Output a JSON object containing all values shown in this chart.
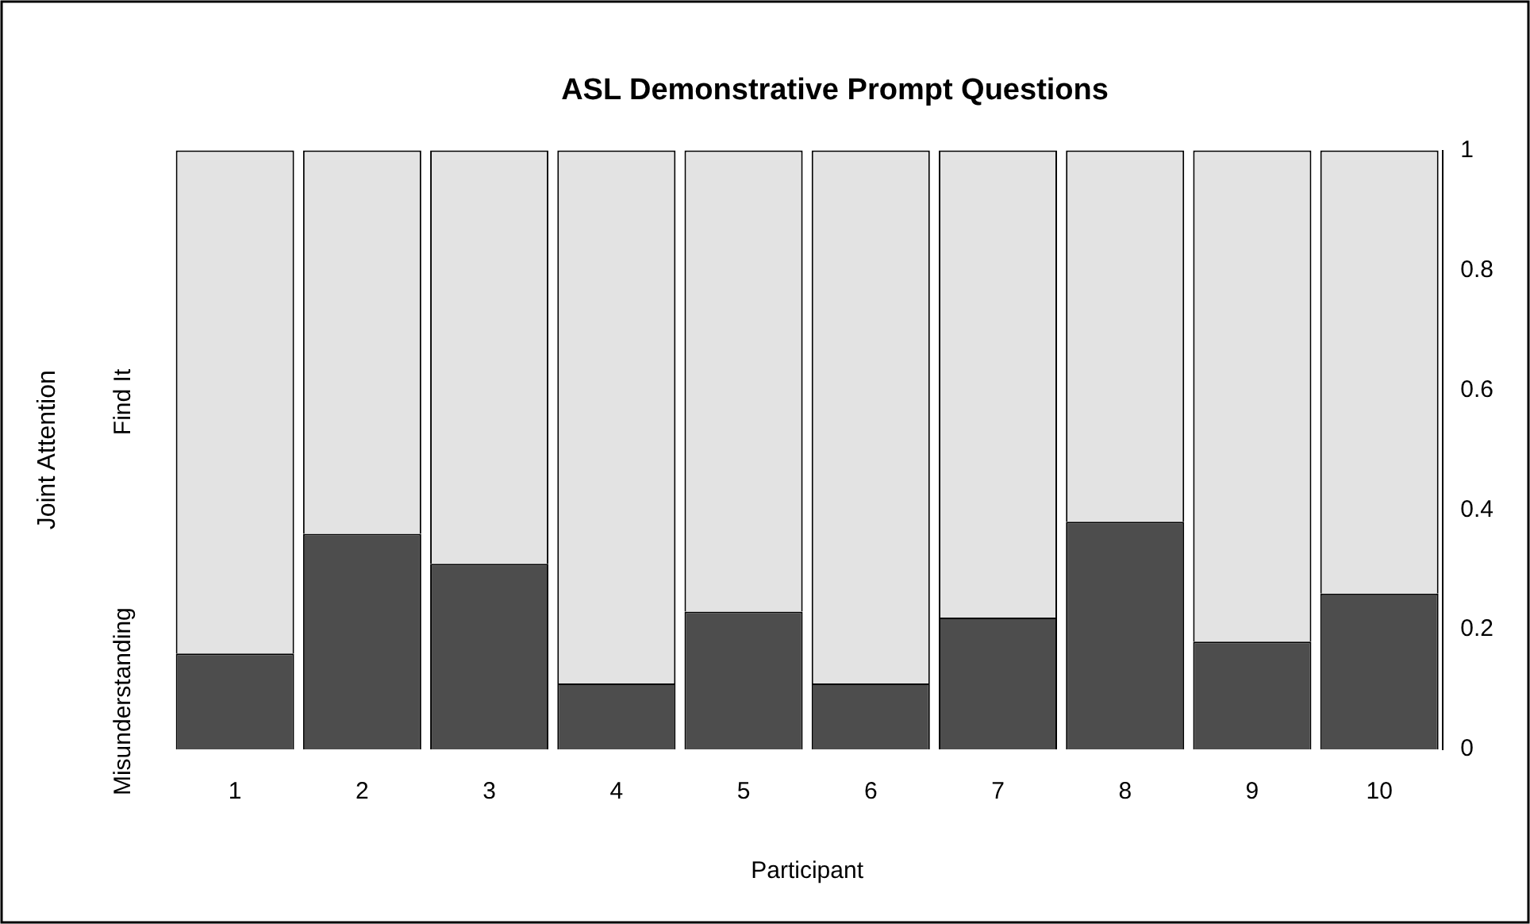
{
  "chart_data": {
    "type": "bar",
    "title": "ASL Demonstrative Prompt Questions",
    "xlabel": "Participant",
    "ylabel": "Joint Attention",
    "categories": [
      "1",
      "2",
      "3",
      "4",
      "5",
      "6",
      "7",
      "8",
      "9",
      "10"
    ],
    "stacked": true,
    "legend": false,
    "grid": false,
    "series": [
      {
        "name": "Misunderstanding",
        "color": "#4d4d4d",
        "values": [
          0.16,
          0.36,
          0.31,
          0.11,
          0.23,
          0.11,
          0.22,
          0.38,
          0.18,
          0.26
        ]
      },
      {
        "name": "Find It",
        "color": "#e3e3e3",
        "values": [
          0.84,
          0.64,
          0.69,
          0.89,
          0.77,
          0.89,
          0.78,
          0.62,
          0.82,
          0.74
        ]
      }
    ],
    "ylim": [
      0,
      1
    ],
    "yticks": [
      0,
      0.2,
      0.4,
      0.6,
      0.8,
      1
    ]
  }
}
